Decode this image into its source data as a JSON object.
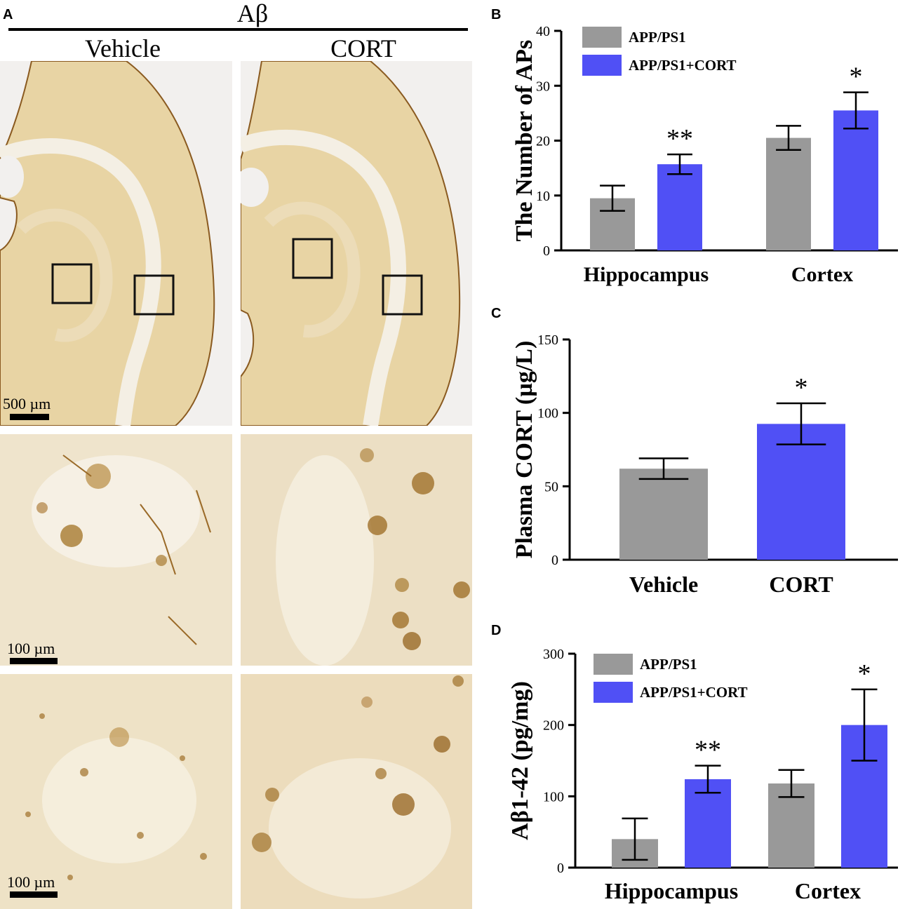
{
  "panelA": {
    "letter": "A",
    "title": "Aβ",
    "col_left": "Vehicle",
    "col_right": "CORT",
    "scale_500": "500 µm",
    "scale_100a": "100 µm",
    "scale_100b": "100 µm"
  },
  "colors": {
    "grey": "#999999",
    "blue": "#5050f5",
    "tissue": "#e9d5a6",
    "stain": "#a07530"
  },
  "chart_data": [
    {
      "panel": "B",
      "type": "bar",
      "categories": [
        "Hippocampus",
        "Cortex"
      ],
      "series": [
        {
          "name": "APP/PS1",
          "color": "#999999",
          "values": [
            9.5,
            20.5
          ],
          "errors": [
            2.3,
            2.2
          ],
          "sig": [
            "",
            ""
          ]
        },
        {
          "name": "APP/PS1+CORT",
          "color": "#5050f5",
          "values": [
            15.7,
            25.5
          ],
          "errors": [
            1.8,
            3.3
          ],
          "sig": [
            "**",
            "*"
          ]
        }
      ],
      "ylabel": "The Number of APs",
      "ylim": [
        0,
        40
      ],
      "yticks": [
        0,
        10,
        20,
        30,
        40
      ],
      "legend": "top-left"
    },
    {
      "panel": "C",
      "type": "bar",
      "categories": [
        "Vehicle",
        "CORT"
      ],
      "series": [
        {
          "name": "",
          "colors": [
            "#999999",
            "#5050f5"
          ],
          "values": [
            62,
            92.5
          ],
          "errors": [
            7,
            14
          ],
          "sig": [
            "",
            "*"
          ]
        }
      ],
      "ylabel": "Plasma CORT (µg/L)",
      "ylim": [
        0,
        150
      ],
      "yticks": [
        0,
        50,
        100,
        150
      ]
    },
    {
      "panel": "D",
      "type": "bar",
      "categories": [
        "Hippocampus",
        "Cortex"
      ],
      "series": [
        {
          "name": "APP/PS1",
          "color": "#999999",
          "values": [
            40,
            118
          ],
          "errors": [
            29,
            19
          ],
          "sig": [
            "",
            ""
          ]
        },
        {
          "name": "APP/PS1+CORT",
          "color": "#5050f5",
          "values": [
            124,
            200
          ],
          "errors": [
            19,
            50
          ],
          "sig": [
            "**",
            "*"
          ]
        }
      ],
      "ylabel": "Aβ1-42 (pg/mg)",
      "ylim": [
        0,
        300
      ],
      "yticks": [
        0,
        100,
        200,
        300
      ],
      "legend": "top-left"
    }
  ]
}
